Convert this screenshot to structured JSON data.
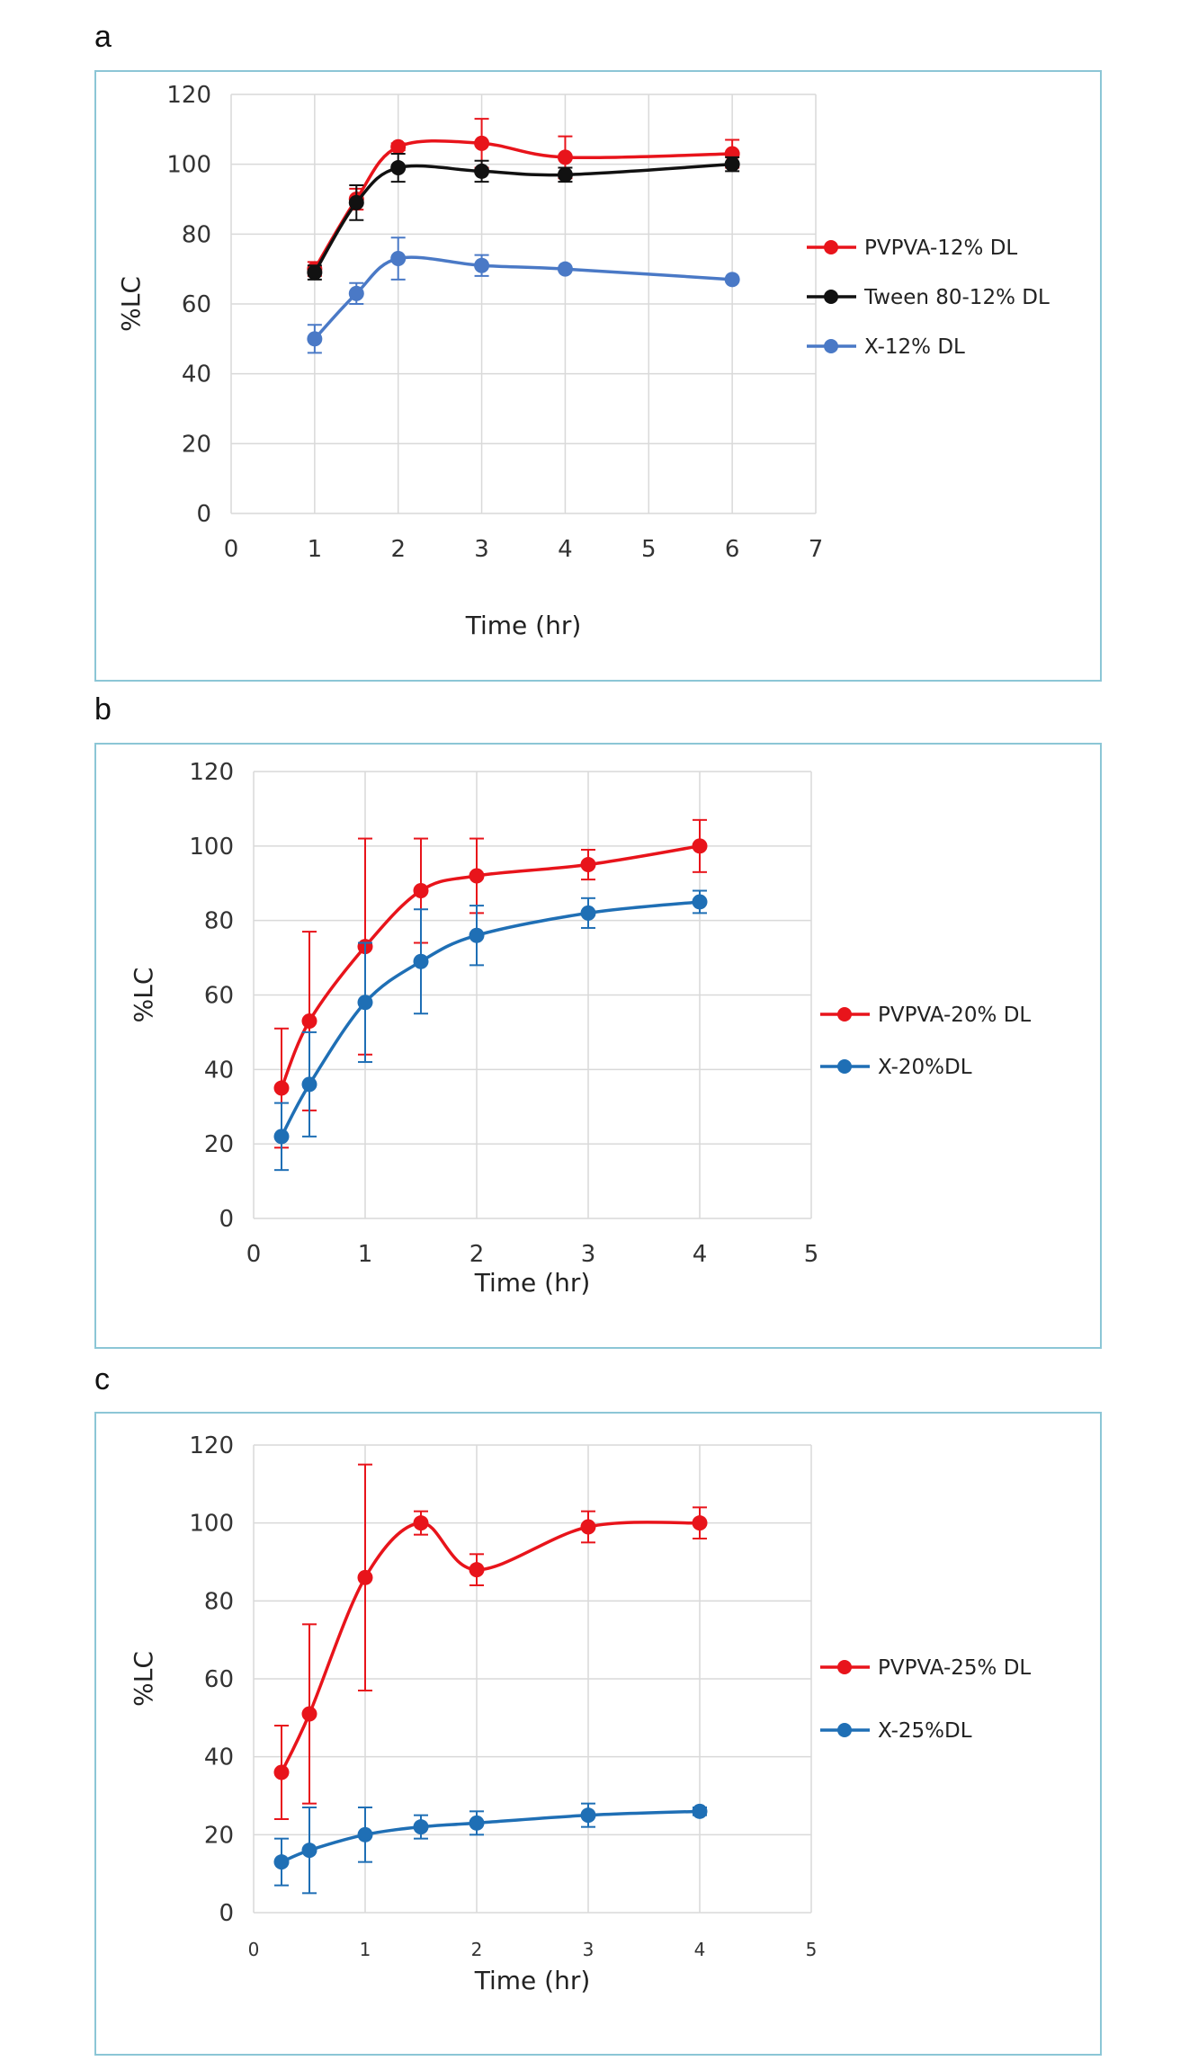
{
  "chart_data": [
    {
      "panel": "a",
      "type": "line",
      "xlabel": "Time (hr)",
      "ylabel": "%LC",
      "xlim": [
        0,
        7
      ],
      "ylim": [
        0,
        120
      ],
      "xticks": [
        "0",
        "1",
        "2",
        "3",
        "4",
        "5",
        "6",
        "7"
      ],
      "yticks": [
        "0",
        "20",
        "40",
        "60",
        "80",
        "100",
        "120"
      ],
      "grid": "both",
      "legend": "right",
      "series": [
        {
          "name": "PVPVA-12% DL",
          "color": "#e8141b",
          "x": [
            1,
            1.5,
            2,
            3,
            4,
            6
          ],
          "y": [
            70,
            90,
            105,
            106,
            102,
            103
          ],
          "err": [
            2,
            3,
            1,
            7,
            6,
            4
          ]
        },
        {
          "name": "Tween 80-12% DL",
          "color": "#111111",
          "x": [
            1,
            1.5,
            2,
            3,
            4,
            6
          ],
          "y": [
            69,
            89,
            99,
            98,
            97,
            100
          ],
          "err": [
            2,
            5,
            4,
            3,
            2,
            2
          ]
        },
        {
          "name": "X-12% DL",
          "color": "#4a79c6",
          "x": [
            1,
            1.5,
            2,
            3,
            4,
            6
          ],
          "y": [
            50,
            63,
            73,
            71,
            70,
            67
          ],
          "err": [
            4,
            3,
            6,
            3,
            0,
            0
          ]
        }
      ]
    },
    {
      "panel": "b",
      "type": "line",
      "xlabel": "Time (hr)",
      "ylabel": "%LC",
      "xlim": [
        0,
        5
      ],
      "ylim": [
        0,
        120
      ],
      "xticks": [
        "0",
        "1",
        "2",
        "3",
        "4",
        "5"
      ],
      "yticks": [
        "0",
        "20",
        "40",
        "60",
        "80",
        "100",
        "120"
      ],
      "grid": "both",
      "legend": "right",
      "series": [
        {
          "name": "PVPVA-20% DL",
          "color": "#e8141b",
          "x": [
            0.25,
            0.5,
            1,
            1.5,
            2,
            3,
            4
          ],
          "y": [
            35,
            53,
            73,
            88,
            92,
            95,
            100
          ],
          "err": [
            16,
            24,
            29,
            14,
            10,
            4,
            7
          ]
        },
        {
          "name": "X-20%DL",
          "color": "#1f6fb5",
          "x": [
            0.25,
            0.5,
            1,
            1.5,
            2,
            3,
            4
          ],
          "y": [
            22,
            36,
            58,
            69,
            76,
            82,
            85
          ],
          "err": [
            9,
            14,
            16,
            14,
            8,
            4,
            3
          ]
        }
      ]
    },
    {
      "panel": "c",
      "type": "line",
      "xlabel": "Time (hr)",
      "ylabel": "%LC",
      "xlim": [
        0,
        5
      ],
      "ylim": [
        0,
        120
      ],
      "xticks": [
        "0",
        "1",
        "2",
        "3",
        "4",
        "5"
      ],
      "yticks": [
        "0",
        "20",
        "40",
        "60",
        "80",
        "100",
        "120"
      ],
      "grid": "both",
      "legend": "right",
      "series": [
        {
          "name": "PVPVA-25% DL",
          "color": "#e8141b",
          "x": [
            0.25,
            0.5,
            1,
            1.5,
            2,
            3,
            4
          ],
          "y": [
            36,
            51,
            86,
            100,
            88,
            99,
            100
          ],
          "err": [
            12,
            23,
            29,
            3,
            4,
            4,
            4
          ]
        },
        {
          "name": "X-25%DL",
          "color": "#1f6fb5",
          "x": [
            0.25,
            0.5,
            1,
            1.5,
            2,
            3,
            4
          ],
          "y": [
            13,
            16,
            20,
            22,
            23,
            25,
            26
          ],
          "err": [
            6,
            11,
            7,
            3,
            3,
            3,
            1
          ]
        }
      ]
    }
  ]
}
